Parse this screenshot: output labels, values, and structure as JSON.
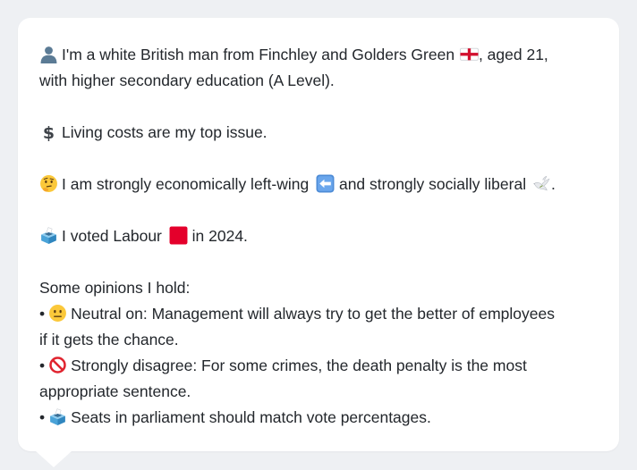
{
  "persona": {
    "intro": {
      "icon": "person-silhouette-icon",
      "text_1": "I'm a white British man from Finchley and Golders Green",
      "flag_icon": "england-flag-icon",
      "text_2": ", aged 21,",
      "text_3": "with higher secondary education (A Level)."
    },
    "issue": {
      "icon": "dollar-sign-icon",
      "text": "Living costs are my top issue."
    },
    "ideology": {
      "icon": "thinking-face-icon",
      "text_1": "I am strongly economically left-wing",
      "left_icon": "left-arrow-icon",
      "text_2": "and strongly socially liberal",
      "dove_icon": "dove-icon",
      "text_3": "."
    },
    "vote": {
      "icon": "ballot-box-icon",
      "text_1": "I voted Labour",
      "party_icon": "red-square-icon",
      "text_2": "in 2024."
    },
    "opinions": {
      "heading": "Some opinions I hold:",
      "bullet": "•",
      "items": [
        {
          "icon": "neutral-face-icon",
          "line_1": "Neutral on: Management will always try to get the better of employees",
          "line_2": "if it gets the chance."
        },
        {
          "icon": "prohibited-icon",
          "line_1": "Strongly disagree: For some crimes, the death penalty is the most",
          "line_2": "appropriate sentence."
        },
        {
          "icon": "ballot-box-icon",
          "line_1": "Seats in parliament should match vote percentages."
        }
      ]
    }
  },
  "colors": {
    "background": "#eef0f3",
    "card": "#ffffff",
    "text": "#23272c",
    "labour_red": "#e4002b"
  }
}
